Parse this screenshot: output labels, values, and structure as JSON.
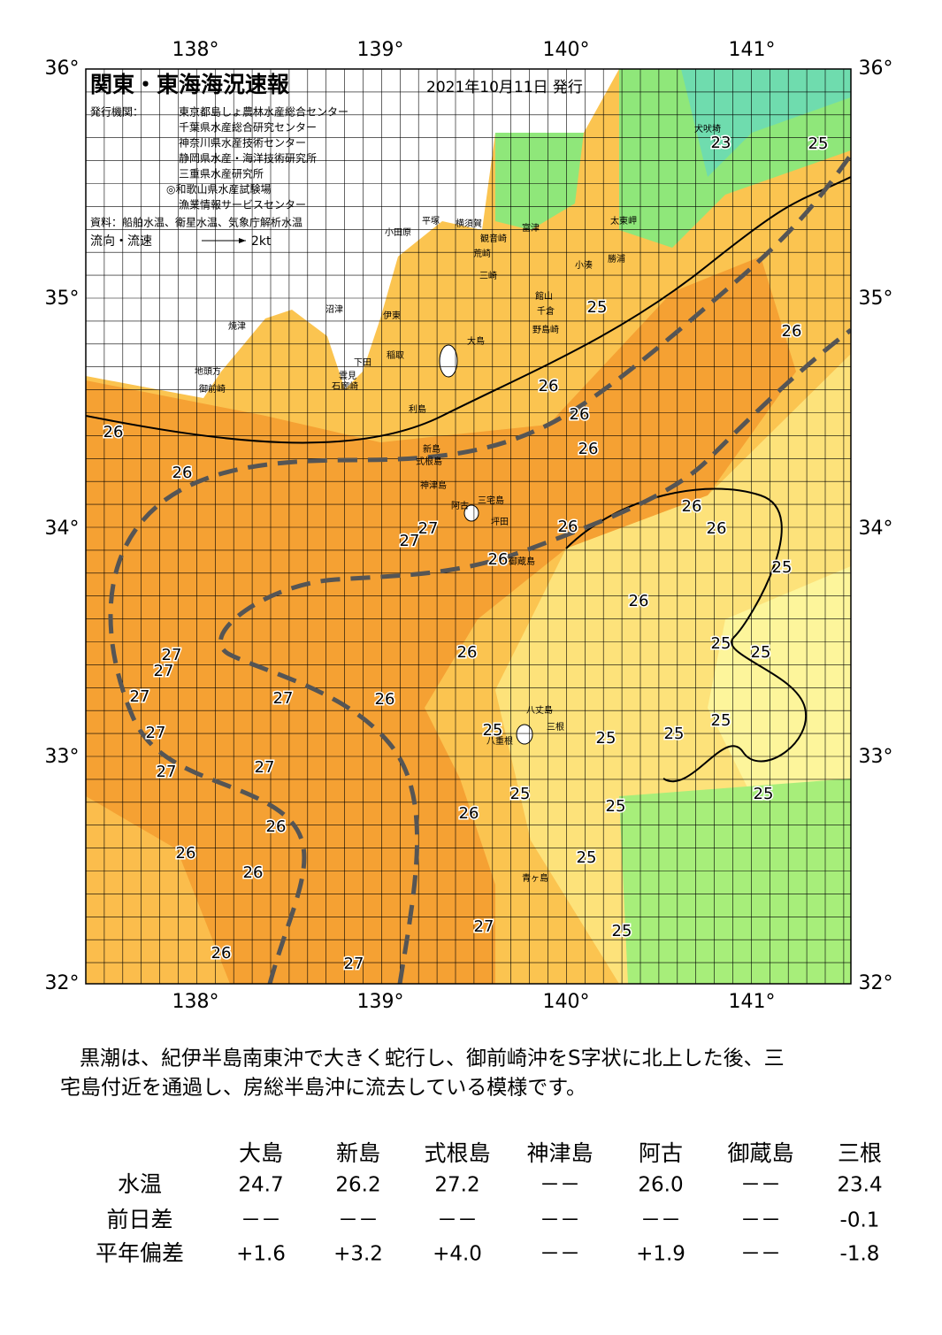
{
  "header": {
    "title": "関東・東海海況速報",
    "date": "2021年10月11日 発行",
    "issuer_label": "発行機関：",
    "issuers": [
      "東京都島しょ農林水産総合センター",
      "千葉県水産総合研究センター",
      "神奈川県水産技術センター",
      "静岡県水産・海洋技術研究所",
      "三重県水産研究所",
      "◎和歌山県水産試験場",
      "漁業情報サービスセンター"
    ],
    "sources": "資料：船舶水温、衛星水温、気象庁解析水温",
    "legend_label": "流向・流速",
    "legend_speed": "2kt"
  },
  "map": {
    "lon_labels": [
      "138°",
      "139°",
      "140°",
      "141°"
    ],
    "lat_labels": [
      "36°",
      "35°",
      "34°",
      "33°",
      "32°"
    ],
    "places": [
      "犬吠埼",
      "太東岬",
      "勝浦",
      "小湊",
      "富津",
      "横須賀",
      "観音崎",
      "平塚",
      "小田原",
      "荒崎",
      "三崎",
      "館山",
      "千倉",
      "野島崎",
      "沼津",
      "伊東",
      "焼津",
      "稲取",
      "下田",
      "雲見",
      "石廊崎",
      "地頭方",
      "御前崎",
      "大島",
      "利島",
      "新島",
      "式根島",
      "神津島",
      "三宅島",
      "阿古",
      "坪田",
      "御蔵島",
      "八丈島",
      "三根",
      "八重根",
      "青ヶ島"
    ],
    "isotherm_labels": [
      "23",
      "25",
      "25",
      "26",
      "26",
      "26",
      "26",
      "26",
      "26",
      "26",
      "26",
      "26",
      "27",
      "27",
      "26",
      "25",
      "26",
      "25",
      "25",
      "26",
      "27",
      "27",
      "27",
      "27",
      "26",
      "25",
      "25",
      "25",
      "25",
      "27",
      "27",
      "27",
      "25",
      "25",
      "25",
      "26",
      "26",
      "26",
      "25",
      "26",
      "27",
      "25",
      "26",
      "27"
    ]
  },
  "comment": {
    "lines": [
      "黒潮は、紀伊半島南東沖で大きく蛇行し、御前崎沖をS字状に北上した後、三",
      "宅島付近を通過し、房総半島沖に流去している模様です。"
    ]
  },
  "table": {
    "columns": [
      "大島",
      "新島",
      "式根島",
      "神津島",
      "阿古",
      "御蔵島",
      "三根"
    ],
    "rows": [
      {
        "label": "水温",
        "values": [
          "24.7",
          "26.2",
          "27.2",
          "－－",
          "26.0",
          "－－",
          "23.4"
        ]
      },
      {
        "label": "前日差",
        "values": [
          "－－",
          "－－",
          "－－",
          "－－",
          "－－",
          "－－",
          "-0.1"
        ]
      },
      {
        "label": "平年偏差",
        "values": [
          "+1.6",
          "+3.2",
          "+4.0",
          "－－",
          "+1.9",
          "－－",
          "-1.8"
        ]
      }
    ]
  }
}
